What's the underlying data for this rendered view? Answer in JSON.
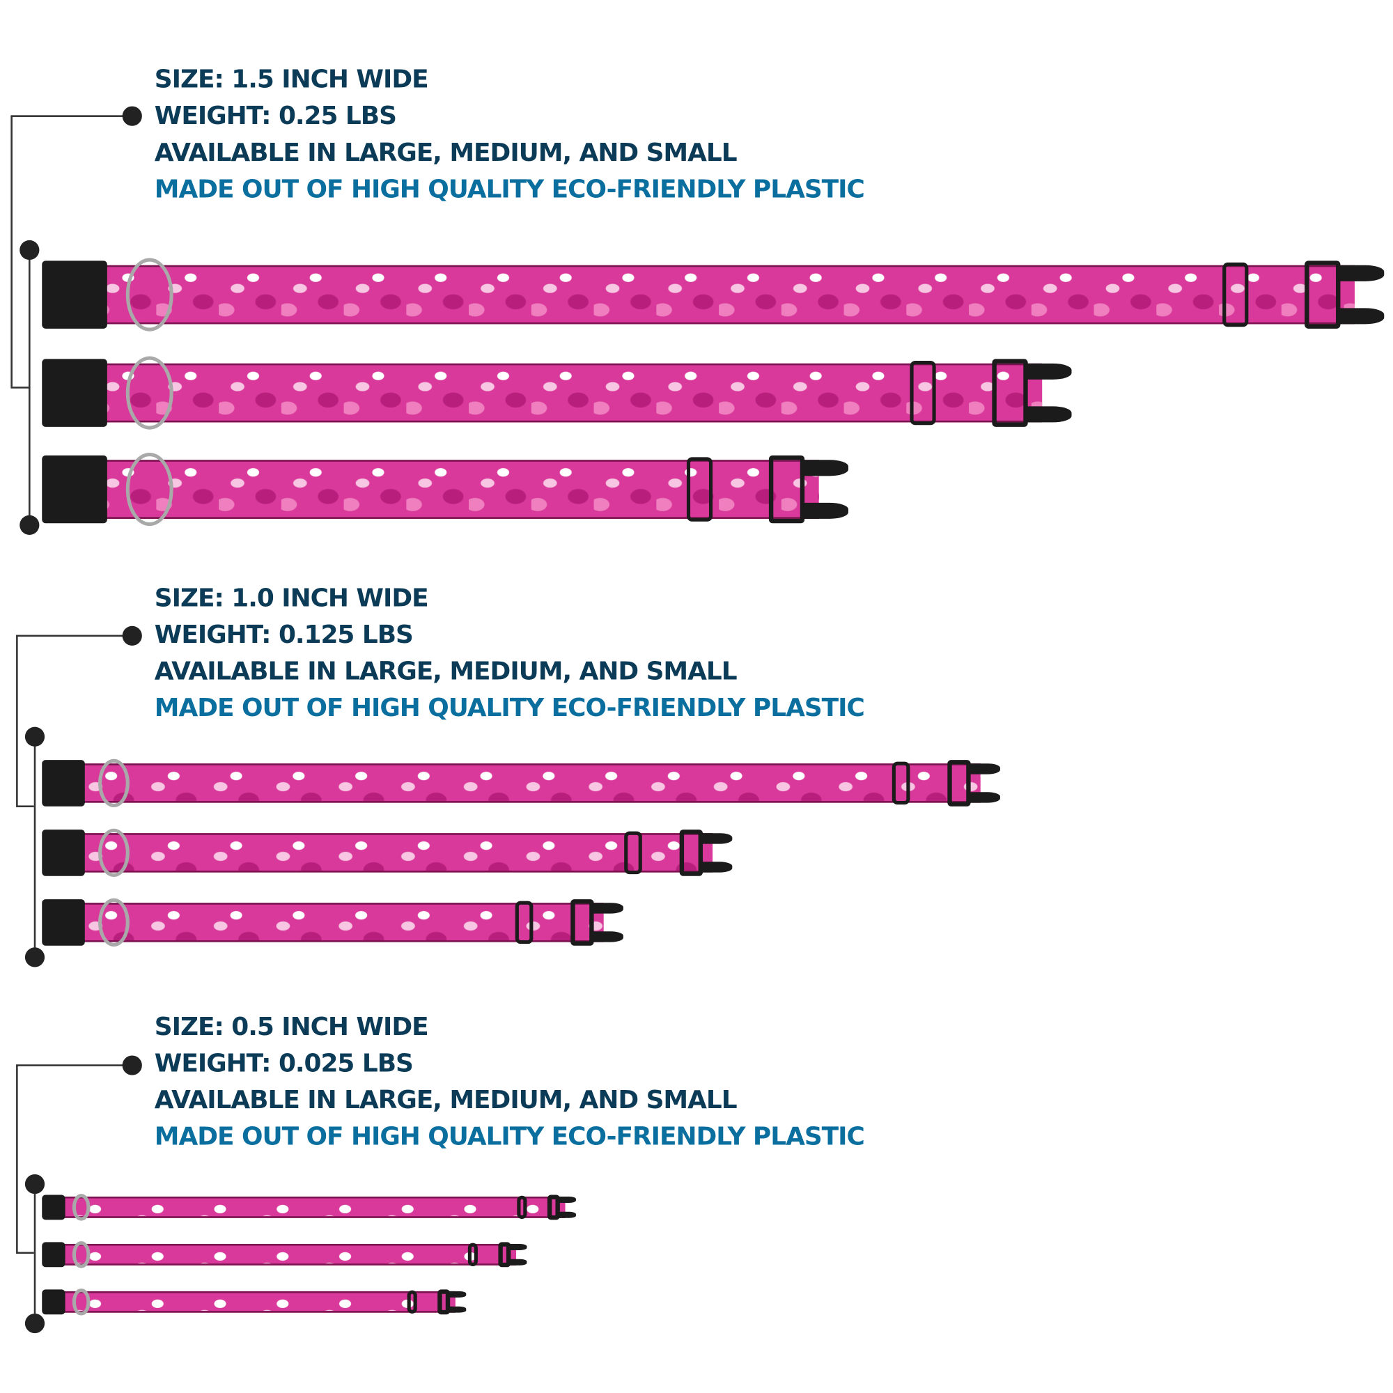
{
  "sections": [
    {
      "size": "SIZE: 1.5 INCH WIDE",
      "weight": "WEIGHT: 0.25 LBS",
      "availability": "AVAILABLE IN LARGE, MEDIUM, AND SMALL",
      "material": "MADE OUT OF HIGH QUALITY ECO-FRIENDLY PLASTIC"
    },
    {
      "size": "SIZE: 1.0 INCH WIDE",
      "weight": "WEIGHT: 0.125 LBS",
      "availability": "AVAILABLE IN LARGE, MEDIUM, AND SMALL",
      "material": "MADE OUT OF HIGH QUALITY ECO-FRIENDLY PLASTIC"
    },
    {
      "size": "SIZE: 0.5 INCH WIDE",
      "weight": "WEIGHT: 0.025 LBS",
      "availability": "AVAILABLE IN LARGE, MEDIUM, AND SMALL",
      "material": "MADE OUT OF HIGH QUALITY ECO-FRIENDLY PLASTIC"
    }
  ],
  "collar_sizes": [
    "large",
    "medium",
    "small"
  ],
  "colors": {
    "text_dark": "#0b3b57",
    "text_accent": "#0a6f9f",
    "collar_pink": "#d9399a",
    "hardware": "#1b1b1b"
  }
}
